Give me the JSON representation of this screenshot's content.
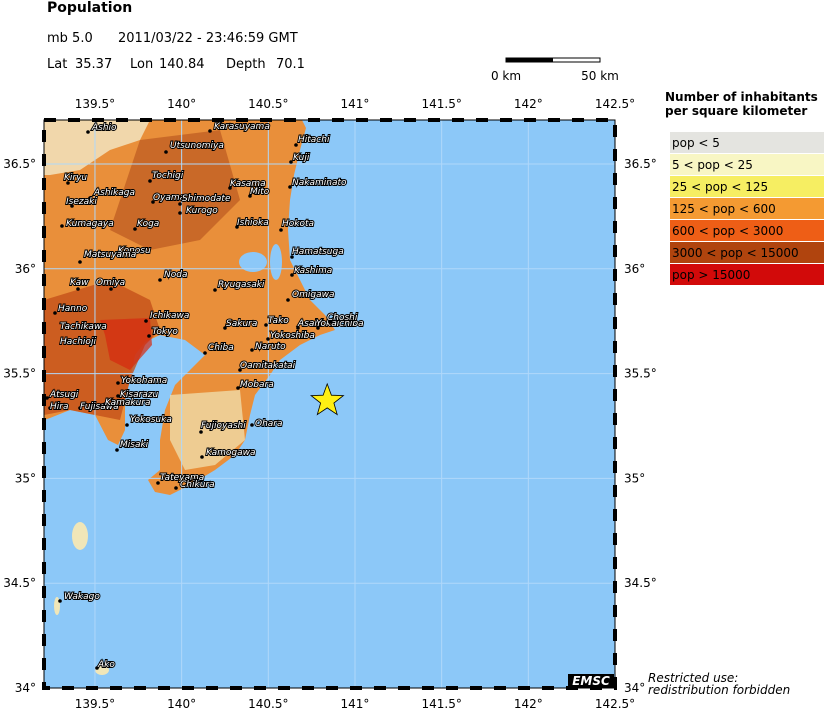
{
  "header": {
    "title": "Population",
    "magnitude": "mb 5.0",
    "datetime": "2011/03/22 - 23:46:59 GMT"
  },
  "event": {
    "lat_label": "Lat",
    "lat": 35.37,
    "lon_label": "Lon",
    "lon": 140.84,
    "depth_label": "Depth",
    "depth": 70.1
  },
  "scale": {
    "start": "0 km",
    "end": "50 km"
  },
  "axis": {
    "lon_lim": [
      139.206,
      142.5
    ],
    "lat_lim": [
      34,
      36.71
    ],
    "lon_ticks": [
      {
        "value": 139.5,
        "label": "139.5°"
      },
      {
        "value": 140,
        "label": "140°"
      },
      {
        "value": 140.5,
        "label": "140.5°"
      },
      {
        "value": 141,
        "label": "141°"
      },
      {
        "value": 141.5,
        "label": "141.5°"
      },
      {
        "value": 142,
        "label": "142°"
      },
      {
        "value": 142.5,
        "label": "142.5°"
      }
    ],
    "lat_ticks": [
      {
        "value": 34,
        "label": "34°"
      },
      {
        "value": 34.5,
        "label": "34.5°"
      },
      {
        "value": 35,
        "label": "35°"
      },
      {
        "value": 35.5,
        "label": "35.5°"
      },
      {
        "value": 36,
        "label": "36°"
      },
      {
        "value": 36.5,
        "label": "36.5°"
      }
    ]
  },
  "legend": {
    "title_lines": [
      "Number of inhabitants",
      "per square kilometer"
    ],
    "items": [
      {
        "label": "pop < 5",
        "color": "#e4e4e0"
      },
      {
        "label": "5 < pop < 25",
        "color": "#f8f6c4"
      },
      {
        "label": "25 < pop < 125",
        "color": "#f6ee62"
      },
      {
        "label": "125 < pop < 600",
        "color": "#f49a32"
      },
      {
        "label": "600 < pop < 3000",
        "color": "#ee5e16"
      },
      {
        "label": "3000 < pop < 15000",
        "color": "#b0440e"
      },
      {
        "label": "pop > 15000",
        "color": "#d20a0a"
      }
    ]
  },
  "cities": [
    "Ashio",
    "Karasuyama",
    "Hitachi",
    "Utsunomiya",
    "Kuji",
    "Kiryu",
    "Tochigi",
    "Nakaminato",
    "Kasama",
    "Ashikaga",
    "Oyama",
    "Shimodate",
    "Mito",
    "Isezaki",
    "Kurogo",
    "Ishioka",
    "Hokota",
    "Kumagaya",
    "Koga",
    "Konosu",
    "Matsuyama",
    "Hamatsuga",
    "Kashima",
    "Noda",
    "Kaw",
    "Omiya",
    "Ryugasaki",
    "Omigawa",
    "Hanno",
    "Ichikawa",
    "Tako",
    "Sakura",
    "Asahi",
    "Yokaichiba",
    "Choshi",
    "Tachikawa",
    "Tokyo",
    "Yokoshiba",
    "Hachioji",
    "Chiba",
    "Naruto",
    "Oamitakatai",
    "Mobara",
    "Yokohama",
    "Kisarazu",
    "Atsugi",
    "Hira",
    "Fujisawa",
    "Kamakura",
    "Yokosuka",
    "Ohara",
    "Fujioyashi",
    "Misaki",
    "Kamogawa",
    "Tateyama",
    "Chikura",
    "Wakago",
    "Ako"
  ],
  "badge": "EMSC",
  "notice": [
    "Restricted use:",
    "redistribution forbidden"
  ]
}
